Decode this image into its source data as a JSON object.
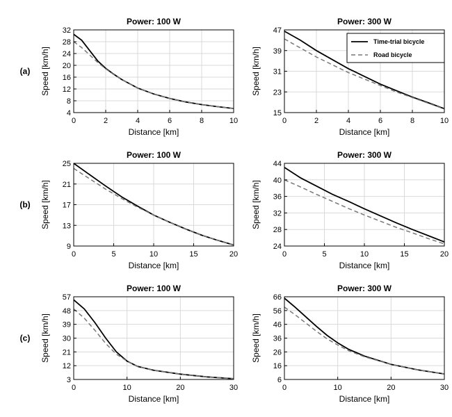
{
  "chart_data": [
    {
      "row": "(a)",
      "title": "Power: 100 W",
      "type": "line",
      "xlabel": "Distance [km]",
      "ylabel": "Speed [km/h]",
      "xlim": [
        0,
        10
      ],
      "ylim": [
        4,
        32
      ],
      "xticks": [
        0,
        2,
        4,
        6,
        8,
        10
      ],
      "yticks": [
        4,
        8,
        12,
        16,
        20,
        24,
        28,
        32
      ],
      "grid": true,
      "series": [
        {
          "name": "Time-trial bicycle",
          "style": "solid",
          "color": "#000000",
          "x": [
            0,
            0.5,
            1,
            1.5,
            2,
            2.5,
            3,
            4,
            5,
            6,
            7,
            8,
            9,
            10
          ],
          "y": [
            30.5,
            28.5,
            25.0,
            21.5,
            19.0,
            17.0,
            15.2,
            12.3,
            10.3,
            8.8,
            7.6,
            6.7,
            6.0,
            5.4
          ]
        },
        {
          "name": "Road bicycle",
          "style": "dashed",
          "color": "#777777",
          "x": [
            0,
            0.5,
            1,
            1.5,
            2,
            2.5,
            3,
            4,
            5,
            6,
            7,
            8,
            9,
            10
          ],
          "y": [
            28.0,
            26.0,
            23.5,
            21.0,
            18.8,
            16.9,
            15.2,
            12.3,
            10.3,
            8.8,
            7.6,
            6.7,
            6.0,
            5.4
          ]
        }
      ]
    },
    {
      "row": "(a)",
      "title": "Power: 300 W",
      "type": "line",
      "xlabel": "Distance [km]",
      "ylabel": "Speed [km/h]",
      "xlim": [
        0,
        10
      ],
      "ylim": [
        15,
        47
      ],
      "xticks": [
        0,
        2,
        4,
        6,
        8,
        10
      ],
      "yticks": [
        15,
        23,
        31,
        39,
        47
      ],
      "grid": true,
      "legend": {
        "position": "top-right",
        "entries": [
          "Time-trial bicycle",
          "Road bicycle"
        ]
      },
      "series": [
        {
          "name": "Time-trial bicycle",
          "style": "solid",
          "color": "#000000",
          "x": [
            0,
            1,
            2,
            3,
            4,
            5,
            6,
            7,
            8,
            9,
            10
          ],
          "y": [
            46.5,
            43.0,
            39.0,
            35.5,
            32.0,
            29.0,
            26.0,
            23.5,
            21.0,
            18.8,
            16.5
          ]
        },
        {
          "name": "Road bicycle",
          "style": "dashed",
          "color": "#777777",
          "x": [
            0,
            1,
            2,
            3,
            4,
            5,
            6,
            7,
            8,
            9,
            10
          ],
          "y": [
            43.5,
            40.0,
            36.5,
            33.5,
            30.5,
            28.0,
            25.5,
            23.0,
            20.8,
            18.6,
            16.4
          ]
        }
      ]
    },
    {
      "row": "(b)",
      "title": "Power: 100 W",
      "type": "line",
      "xlabel": "Distance [km]",
      "ylabel": "Speed [km/h]",
      "xlim": [
        0,
        20
      ],
      "ylim": [
        9,
        25
      ],
      "xticks": [
        0,
        5,
        10,
        15,
        20
      ],
      "yticks": [
        9,
        13,
        17,
        21,
        25
      ],
      "grid": true,
      "series": [
        {
          "name": "Time-trial bicycle",
          "style": "solid",
          "color": "#000000",
          "x": [
            0,
            2,
            4,
            6,
            8,
            10,
            12,
            14,
            16,
            18,
            20
          ],
          "y": [
            25.0,
            22.8,
            20.6,
            18.5,
            16.7,
            15.0,
            13.6,
            12.3,
            11.1,
            10.1,
            9.2
          ]
        },
        {
          "name": "Road bicycle",
          "style": "dashed",
          "color": "#777777",
          "x": [
            0,
            2,
            4,
            6,
            8,
            10,
            12,
            14,
            16,
            18,
            20
          ],
          "y": [
            24.0,
            22.0,
            20.0,
            18.2,
            16.5,
            15.0,
            13.6,
            12.3,
            11.1,
            10.1,
            9.2
          ]
        }
      ]
    },
    {
      "row": "(b)",
      "title": "Power: 300 W",
      "type": "line",
      "xlabel": "Distance [km]",
      "ylabel": "Speed [km/h]",
      "xlim": [
        0,
        20
      ],
      "ylim": [
        24,
        44
      ],
      "xticks": [
        0,
        5,
        10,
        15,
        20
      ],
      "yticks": [
        24,
        28,
        32,
        36,
        40,
        44
      ],
      "grid": true,
      "series": [
        {
          "name": "Time-trial bicycle",
          "style": "solid",
          "color": "#000000",
          "x": [
            0,
            2,
            4,
            6,
            8,
            10,
            12,
            14,
            16,
            18,
            20
          ],
          "y": [
            43.0,
            40.5,
            38.5,
            36.5,
            34.8,
            33.0,
            31.3,
            29.6,
            28.0,
            26.5,
            25.0
          ]
        },
        {
          "name": "Road bicycle",
          "style": "dashed",
          "color": "#777777",
          "x": [
            0,
            2,
            4,
            6,
            8,
            10,
            12,
            14,
            16,
            18,
            20
          ],
          "y": [
            40.0,
            38.3,
            36.5,
            34.8,
            33.1,
            31.5,
            30.0,
            28.5,
            27.2,
            25.8,
            24.5
          ]
        }
      ]
    },
    {
      "row": "(c)",
      "title": "Power: 100 W",
      "type": "line",
      "xlabel": "Distance [km]",
      "ylabel": "Speed [km/h]",
      "xlim": [
        0,
        30
      ],
      "ylim": [
        3,
        57
      ],
      "xticks": [
        0,
        10,
        20,
        30
      ],
      "yticks": [
        3,
        12,
        21,
        30,
        39,
        48,
        57
      ],
      "grid": true,
      "series": [
        {
          "name": "Time-trial bicycle",
          "style": "solid",
          "color": "#000000",
          "x": [
            0,
            2,
            4,
            6,
            8,
            10,
            12,
            15,
            20,
            25,
            30
          ],
          "y": [
            55.0,
            49.0,
            40.0,
            30.0,
            21.0,
            15.0,
            11.5,
            9.0,
            6.5,
            4.7,
            3.5
          ]
        },
        {
          "name": "Road bicycle",
          "style": "dashed",
          "color": "#777777",
          "x": [
            0,
            2,
            4,
            6,
            8,
            10,
            12,
            15,
            20,
            25,
            30
          ],
          "y": [
            49.0,
            43.0,
            35.0,
            26.5,
            19.5,
            15.0,
            11.5,
            9.0,
            6.5,
            4.7,
            3.5
          ]
        }
      ]
    },
    {
      "row": "(c)",
      "title": "Power: 300 W",
      "type": "line",
      "xlabel": "Distance [km]",
      "ylabel": "Speed [km/h]",
      "xlim": [
        0,
        30
      ],
      "ylim": [
        6,
        66
      ],
      "xticks": [
        0,
        10,
        20,
        30
      ],
      "yticks": [
        6,
        16,
        26,
        36,
        46,
        56,
        66
      ],
      "grid": true,
      "series": [
        {
          "name": "Time-trial bicycle",
          "style": "solid",
          "color": "#000000",
          "x": [
            0,
            2,
            4,
            6,
            8,
            10,
            12,
            15,
            20,
            25,
            30
          ],
          "y": [
            65.0,
            58.5,
            51.5,
            44.5,
            38.0,
            32.5,
            28.0,
            23.0,
            17.0,
            13.0,
            10.0
          ]
        },
        {
          "name": "Road bicycle",
          "style": "dashed",
          "color": "#777777",
          "x": [
            0,
            2,
            4,
            6,
            8,
            10,
            12,
            15,
            20,
            25,
            30
          ],
          "y": [
            58.5,
            53.0,
            47.0,
            41.0,
            35.5,
            31.0,
            27.0,
            22.5,
            17.0,
            13.0,
            10.0
          ]
        }
      ]
    }
  ],
  "row_labels": [
    "(a)",
    "(b)",
    "(c)"
  ]
}
